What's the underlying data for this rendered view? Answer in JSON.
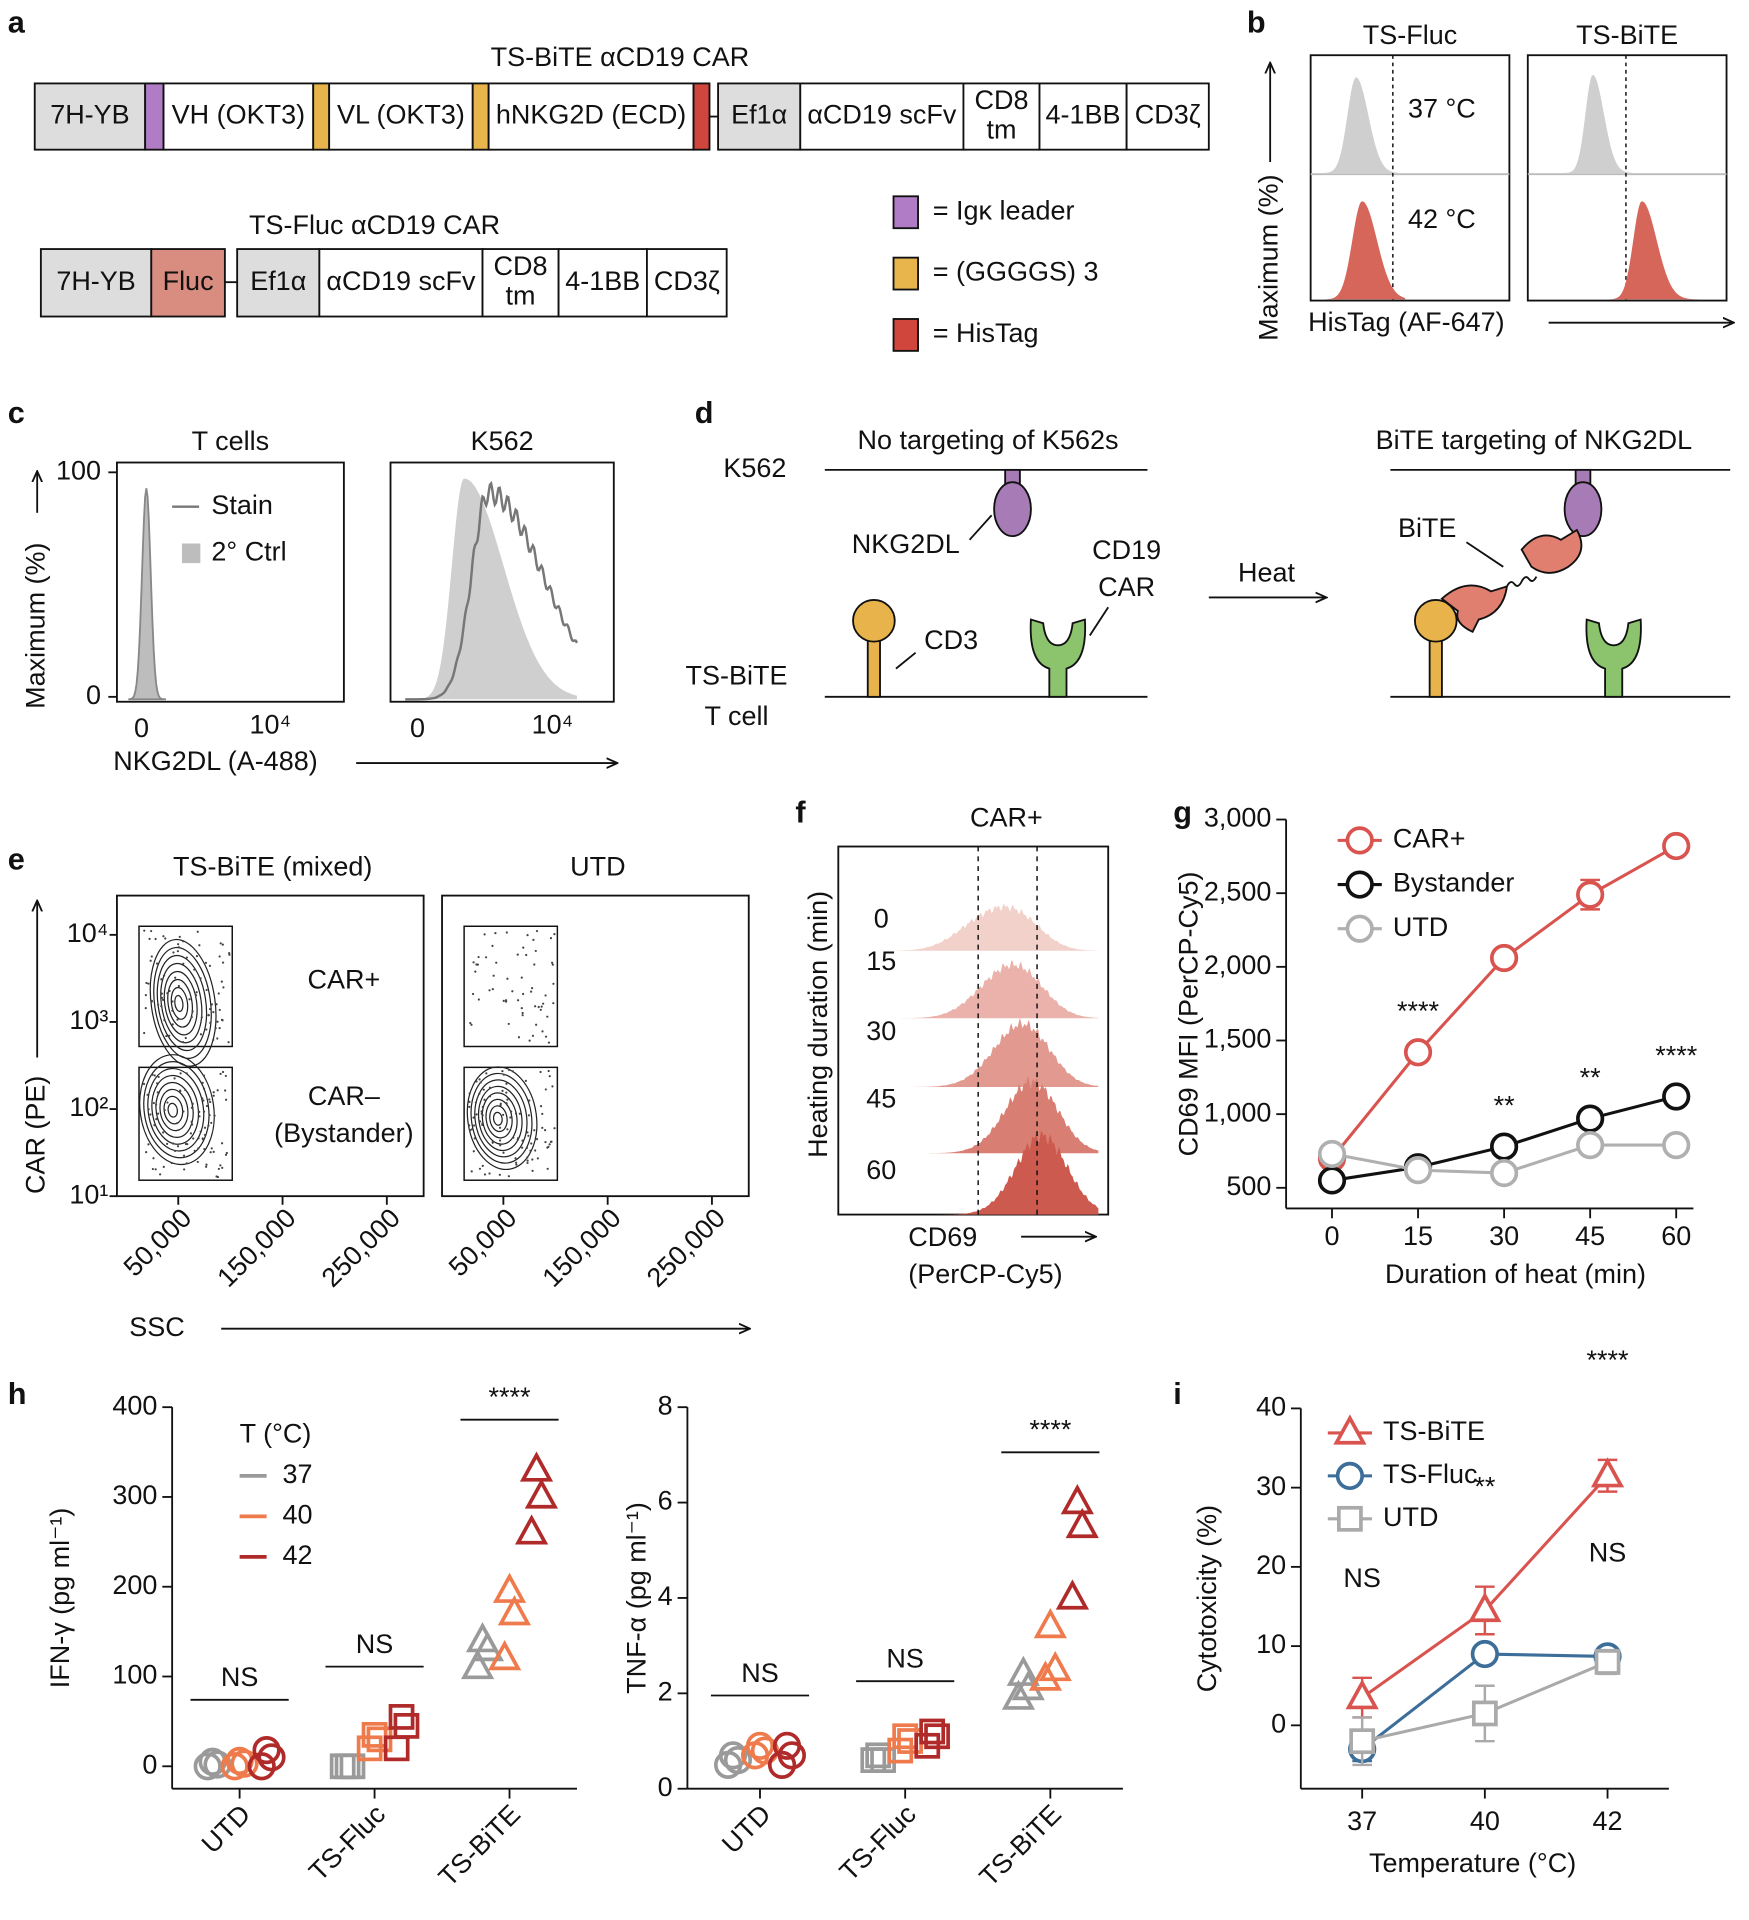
{
  "panel_labels": [
    "a",
    "b",
    "c",
    "d",
    "e",
    "f",
    "g",
    "h",
    "i"
  ],
  "panel_a": {
    "bite_title": "TS-BiTE αCD19 CAR",
    "bite_segments": [
      [
        "7H-YB"
      ],
      [
        "VH (OKT3)"
      ],
      [
        "VL (OKT3)"
      ],
      [
        "hNKG2D (ECD)"
      ],
      [
        "Ef1α"
      ],
      [
        "αCD19 scFv"
      ],
      [
        "CD8",
        "tm"
      ],
      [
        "4-1BB"
      ],
      [
        "CD3ζ"
      ]
    ],
    "fluc_title": "TS-Fluc αCD19 CAR",
    "fluc_segments": [
      [
        "7H-YB"
      ],
      [
        "Fluc"
      ],
      [
        "Ef1α"
      ],
      [
        "αCD19 scFv"
      ],
      [
        "CD8",
        "tm"
      ],
      [
        "4-1BB"
      ],
      [
        "CD3ζ"
      ]
    ],
    "legend": [
      "= Igκ leader",
      "= (GGGGS) 3",
      "= HisTag"
    ]
  },
  "panel_b": {
    "columns": [
      "TS-Fluc",
      "TS-BiTE"
    ],
    "rows": [
      "37 °C",
      "42 °C"
    ],
    "y_label": "Maximum (%)",
    "x_label": "HisTag (AF-647)"
  },
  "panel_c": {
    "titles": [
      "T cells",
      "K562"
    ],
    "y_label": "Maximum (%)",
    "y_ticks": [
      100,
      0
    ],
    "x_ticks": [
      "0",
      "10⁴"
    ],
    "x_label": "NKG2DL (A-488)",
    "legend": [
      "Stain",
      "2° Ctrl"
    ]
  },
  "panel_d": {
    "left_title": "No targeting of K562s",
    "right_title": "BiTE targeting of NKG2DL",
    "k562": "K562",
    "nkg2dl": "NKG2DL",
    "car": [
      "CD19",
      "CAR"
    ],
    "cd3": "CD3",
    "tcell": [
      "TS-BiTE",
      "T cell"
    ],
    "heat": "Heat",
    "bite": "BiTE"
  },
  "panel_e": {
    "titles": [
      "TS-BiTE (mixed)",
      "UTD"
    ],
    "gates": [
      "CAR+",
      "CAR–",
      "(Bystander)"
    ],
    "y_label": "CAR (PE)",
    "x_label": "SSC",
    "y_ticks": [
      "10⁴",
      "10³",
      "10²",
      "10¹"
    ],
    "x_ticks": [
      "50,000",
      "150,000",
      "250,000"
    ]
  },
  "panel_f": {
    "title": "CAR+",
    "y_label": "Heating duration (min)",
    "rows": [
      0,
      15,
      30,
      45,
      60
    ],
    "x_label": [
      "CD69",
      "(PerCP-Cy5)"
    ]
  },
  "chart_data": [
    {
      "type": "line",
      "x_label": "Duration of heat (min)",
      "y_label": "CD69 MFI (PerCP-Cy5)",
      "x": [
        0,
        15,
        30,
        45,
        60
      ],
      "xlim": [
        -8,
        63
      ],
      "xticks": [
        0,
        15,
        30,
        45,
        60
      ],
      "ylim": [
        360,
        3000
      ],
      "yticks": [
        500,
        {
          "value": 1000,
          "label": "1,000"
        },
        {
          "value": 1500,
          "label": "1,500"
        },
        {
          "value": 2000,
          "label": "2,000"
        },
        {
          "value": 2500,
          "label": "2,500"
        },
        {
          "value": 3000,
          "label": "3,000"
        }
      ],
      "series": [
        {
          "name": "CAR+",
          "color": "#d9534f",
          "marker": "circle",
          "values": [
            700,
            1420,
            2060,
            2490,
            2820
          ],
          "errors": [
            0,
            0,
            0,
            100,
            0
          ]
        },
        {
          "name": "Bystander",
          "color": "#111111",
          "marker": "circle",
          "values": [
            550,
            640,
            780,
            970,
            1120
          ],
          "errors": [
            0,
            0,
            0,
            0,
            0
          ]
        },
        {
          "name": "UTD",
          "color": "#b0b0b0",
          "marker": "circle",
          "values": [
            730,
            620,
            600,
            790,
            790
          ],
          "errors": [
            0,
            0,
            0,
            0,
            0
          ]
        }
      ],
      "annotations": [
        {
          "text": "****",
          "x": 15,
          "series": "CAR+"
        },
        {
          "text": "**",
          "x": 30,
          "series": "Bystander"
        },
        {
          "text": "**",
          "x": 45,
          "series": "Bystander"
        },
        {
          "text": "****",
          "x": 60,
          "series": "Bystander"
        }
      ]
    },
    {
      "type": "strip",
      "y_label": "IFN-γ (pg ml⁻¹)",
      "legend_title": "T (°C)",
      "categories": [
        "UTD",
        "TS-Fluc",
        "TS-BiTE"
      ],
      "markers": [
        "circle",
        "square",
        "triangle"
      ],
      "ylim": [
        -25,
        400
      ],
      "yticks": [
        0,
        100,
        200,
        300,
        400
      ],
      "series": [
        {
          "name": "37",
          "color": "#9a9a9a",
          "values": [
            [
              0,
              2,
              5
            ],
            [
              0,
              0,
              0
            ],
            [
              110,
              130,
              140
            ]
          ]
        },
        {
          "name": "40",
          "color": "#ef7a4c",
          "values": [
            [
              0,
              3,
              6
            ],
            [
              20,
              30,
              35
            ],
            [
              120,
              170,
              195
            ]
          ]
        },
        {
          "name": "42",
          "color": "#b02a2a",
          "values": [
            [
              0,
              10,
              18
            ],
            [
              20,
              45,
              55
            ],
            [
              260,
              300,
              330
            ]
          ]
        }
      ],
      "annotations": [
        {
          "text": "NS",
          "category": "UTD"
        },
        {
          "text": "NS",
          "category": "TS-Fluc"
        },
        {
          "text": "****",
          "category": "TS-BiTE"
        }
      ]
    },
    {
      "type": "strip",
      "y_label": "TNF-α (pg ml⁻¹)",
      "categories": [
        "UTD",
        "TS-Fluc",
        "TS-BiTE"
      ],
      "markers": [
        "circle",
        "square",
        "triangle"
      ],
      "ylim": [
        0,
        8
      ],
      "yticks": [
        0,
        2,
        4,
        6,
        8
      ],
      "series": [
        {
          "name": "37",
          "color": "#9a9a9a",
          "values": [
            [
              0.5,
              0.6,
              0.7
            ],
            [
              0.6,
              0.6,
              0.7
            ],
            [
              1.9,
              2.1,
              2.4
            ]
          ]
        },
        {
          "name": "40",
          "color": "#ef7a4c",
          "values": [
            [
              0.7,
              0.8,
              0.9
            ],
            [
              0.8,
              1.0,
              1.1
            ],
            [
              2.3,
              2.5,
              3.4
            ]
          ]
        },
        {
          "name": "42",
          "color": "#b02a2a",
          "values": [
            [
              0.5,
              0.7,
              0.9
            ],
            [
              0.9,
              1.1,
              1.2
            ],
            [
              4.0,
              5.5,
              6.0
            ]
          ]
        }
      ],
      "annotations": [
        {
          "text": "NS",
          "category": "UTD"
        },
        {
          "text": "NS",
          "category": "TS-Fluc"
        },
        {
          "text": "****",
          "category": "TS-BiTE"
        }
      ]
    },
    {
      "type": "line",
      "x_label": "Temperature (°C)",
      "y_label": "Cytotoxicity (%)",
      "categories": [
        "37",
        "40",
        "42"
      ],
      "ylim": [
        -8,
        40
      ],
      "yticks": [
        0,
        10,
        20,
        30,
        40
      ],
      "series": [
        {
          "name": "TS-BiTE",
          "color": "#d9534f",
          "marker": "triangle",
          "values": [
            3.5,
            14.5,
            31.5
          ],
          "errors": [
            2.5,
            3,
            2
          ]
        },
        {
          "name": "TS-Fluc",
          "color": "#3d6e9a",
          "marker": "circle",
          "values": [
            -3,
            9,
            8.7
          ],
          "errors": [
            1.5,
            1,
            0.5
          ]
        },
        {
          "name": "UTD",
          "color": "#aaaaaa",
          "marker": "square",
          "values": [
            -2,
            1.5,
            8
          ],
          "errors": [
            3,
            3.5,
            1.5
          ]
        }
      ],
      "annotations": [
        {
          "text": "NS",
          "category": "37",
          "series": "TS-BiTE"
        },
        {
          "text": "**",
          "category": "40",
          "series": "TS-BiTE"
        },
        {
          "text": "****",
          "category": "42",
          "series": "TS-BiTE"
        },
        {
          "text": "NS",
          "category": "42",
          "series": "TS-Fluc"
        }
      ]
    }
  ]
}
